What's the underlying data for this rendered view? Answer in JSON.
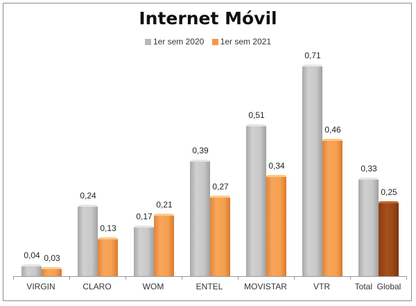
{
  "chart_data": {
    "type": "bar",
    "title": "Internet Móvil",
    "categories": [
      "VIRGIN",
      "CLARO",
      "WOM",
      "ENTEL",
      "MOVISTAR",
      "VTR",
      "Total  Global"
    ],
    "series": [
      {
        "name": "1er sem 2020",
        "color": "#c0c0c0",
        "values": [
          0.04,
          0.24,
          0.17,
          0.39,
          0.51,
          0.71,
          0.33
        ],
        "labels": [
          "0,04",
          "0,24",
          "0,17",
          "0,39",
          "0,51",
          "0,71",
          "0,33"
        ]
      },
      {
        "name": "1er sem 2021",
        "color": "#f79646",
        "values": [
          0.03,
          0.13,
          0.21,
          0.27,
          0.34,
          0.46,
          0.25
        ],
        "labels": [
          "0,03",
          "0,13",
          "0,21",
          "0,27",
          "0,34",
          "0,46",
          "0,25"
        ],
        "highlight_last_color": "#9c4a17"
      }
    ],
    "xlabel": "",
    "ylabel": "",
    "legend_position": "top",
    "grid": false
  }
}
